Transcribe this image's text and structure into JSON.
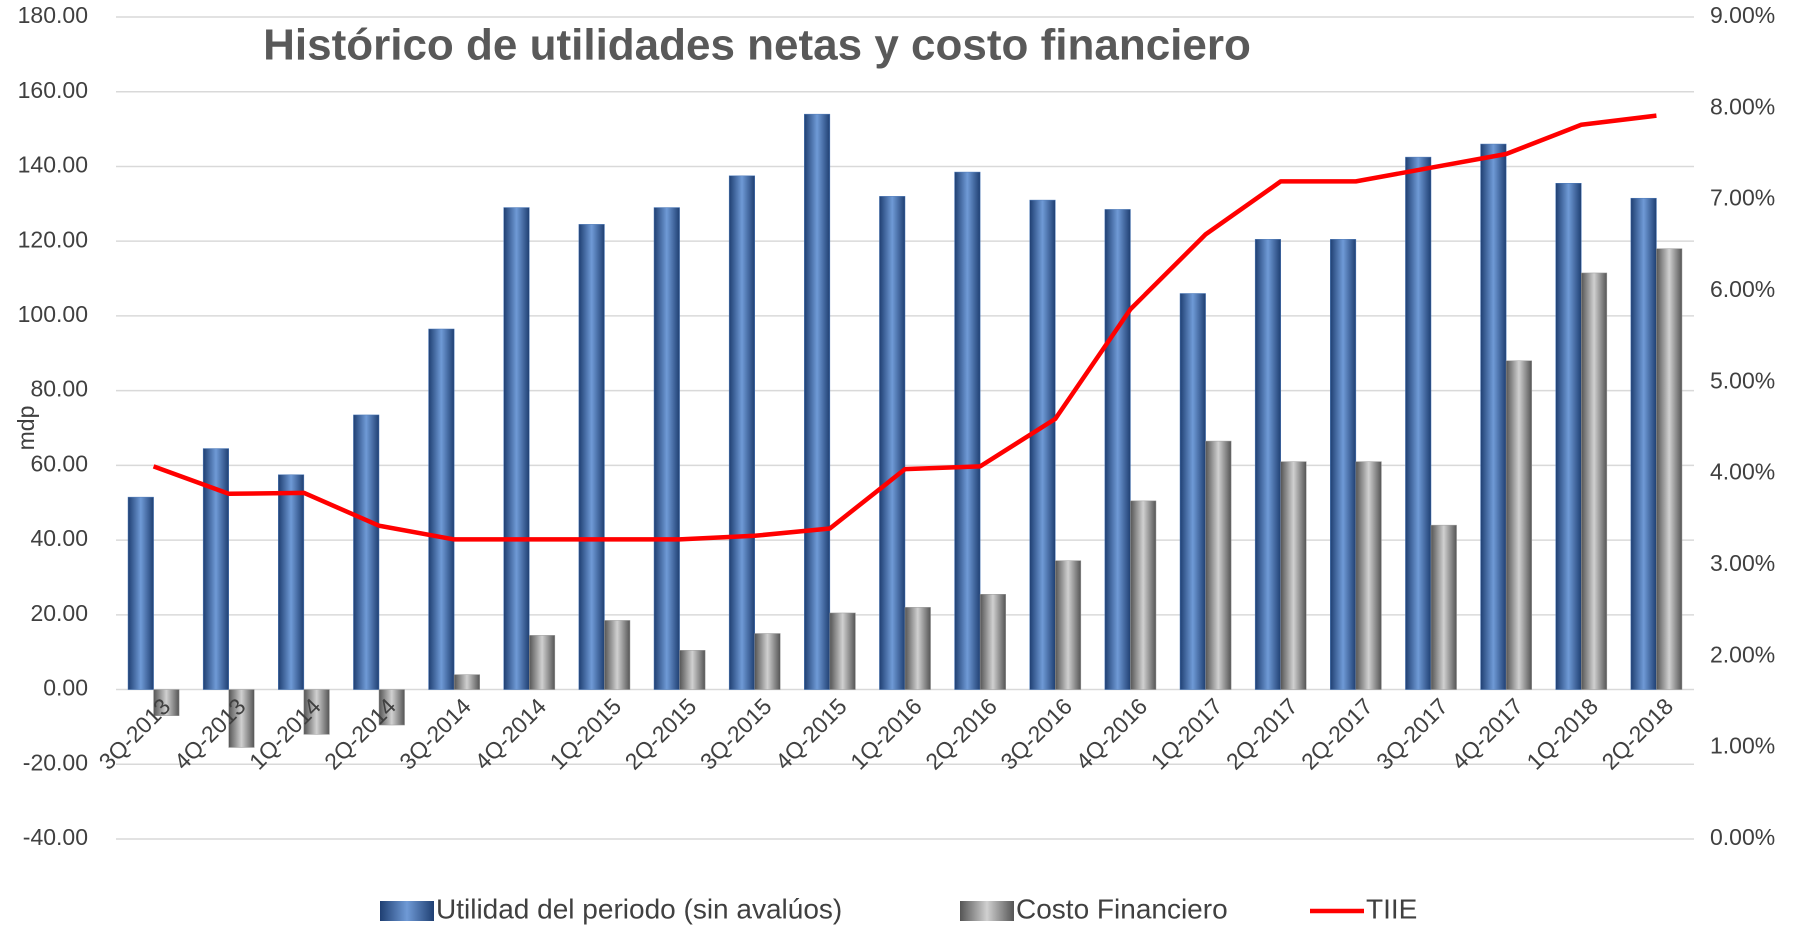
{
  "chart_data": {
    "type": "bar",
    "title": "Histórico de utilidades netas y costo financiero",
    "y_label": "mdp",
    "categories": [
      "3Q-2013",
      "4Q-2013",
      "1Q-2014",
      "2Q-2014",
      "3Q-2014",
      "4Q-2014",
      "1Q-2015",
      "2Q-2015",
      "3Q-2015",
      "4Q-2015",
      "1Q-2016",
      "2Q-2016",
      "3Q-2016",
      "4Q-2016",
      "1Q-2017",
      "2Q-2017",
      "2Q-2017",
      "3Q-2017",
      "4Q-2017",
      "1Q-2018",
      "2Q-2018"
    ],
    "series": [
      {
        "name": "Utilidad del periodo (sin avalúos)",
        "type": "bar",
        "color": "#4a78b8",
        "values": [
          51.5,
          64.5,
          57.5,
          73.5,
          96.5,
          129,
          124.5,
          129,
          137.5,
          154,
          132,
          138.5,
          131,
          128.5,
          106,
          120.5,
          120.5,
          142.5,
          146,
          135.5,
          131.5
        ]
      },
      {
        "name": "Costo Financiero",
        "type": "bar",
        "color": "#9a9a9a",
        "values": [
          -7,
          -15.5,
          -12,
          -9.5,
          4,
          14.5,
          18.5,
          10.5,
          15,
          20.5,
          22,
          25.5,
          34.5,
          50.5,
          66.5,
          61,
          61,
          44,
          88,
          111.5,
          118
        ]
      },
      {
        "name": "TIIE",
        "type": "line",
        "axis": "y2",
        "color": "#ff0000",
        "values": [
          4.08,
          3.78,
          3.79,
          3.43,
          3.28,
          3.28,
          3.28,
          3.28,
          3.32,
          3.4,
          4.05,
          4.08,
          4.6,
          5.8,
          6.62,
          7.2,
          7.2,
          7.35,
          7.5,
          7.82,
          7.92
        ]
      }
    ],
    "ylim": [
      -40,
      180
    ],
    "yticks": [
      {
        "value": -40,
        "label": "-40.00"
      },
      {
        "value": -20,
        "label": "-20.00"
      },
      {
        "value": 0,
        "label": "0.00"
      },
      {
        "value": 20,
        "label": "20.00"
      },
      {
        "value": 40,
        "label": "40.00"
      },
      {
        "value": 60,
        "label": "60.00"
      },
      {
        "value": 80,
        "label": "80.00"
      },
      {
        "value": 100,
        "label": "100.00"
      },
      {
        "value": 120,
        "label": "120.00"
      },
      {
        "value": 140,
        "label": "140.00"
      },
      {
        "value": 160,
        "label": "160.00"
      },
      {
        "value": 180,
        "label": "180.00"
      }
    ],
    "y2lim": [
      0,
      9
    ],
    "y2ticks": [
      {
        "value": 0,
        "label": "0.00%"
      },
      {
        "value": 1,
        "label": "1.00%"
      },
      {
        "value": 2,
        "label": "2.00%"
      },
      {
        "value": 3,
        "label": "3.00%"
      },
      {
        "value": 4,
        "label": "4.00%"
      },
      {
        "value": 5,
        "label": "5.00%"
      },
      {
        "value": 6,
        "label": "6.00%"
      },
      {
        "value": 7,
        "label": "7.00%"
      },
      {
        "value": 8,
        "label": "8.00%"
      },
      {
        "value": 9,
        "label": "9.00%"
      }
    ],
    "grid": true,
    "legend": "bottom"
  }
}
